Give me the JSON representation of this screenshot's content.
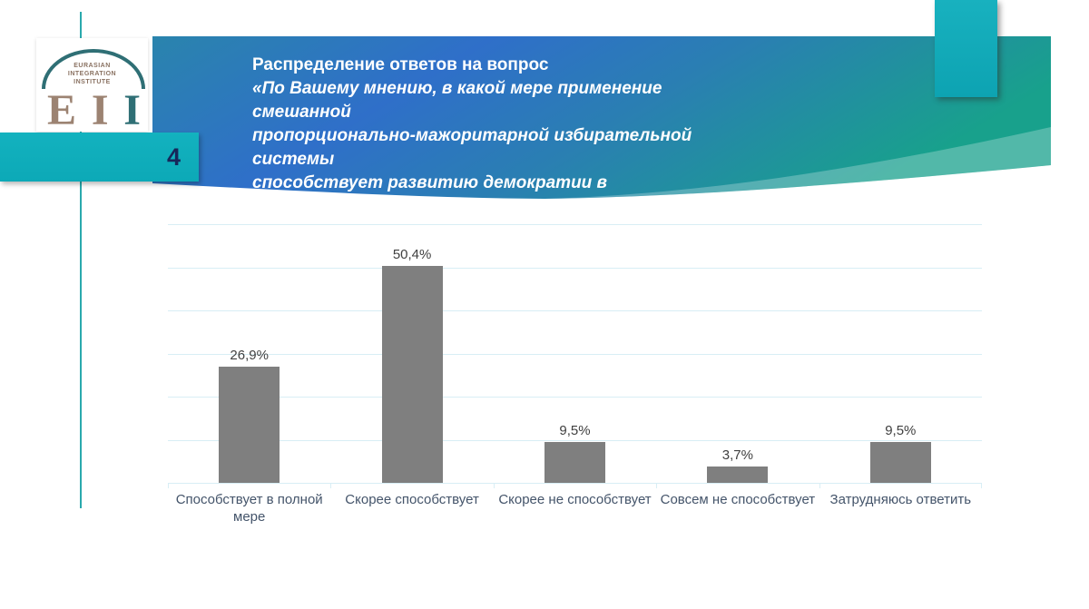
{
  "slide": {
    "page_number": "4"
  },
  "logo": {
    "institute_lines": [
      "EURASIAN",
      "INTEGRATION",
      "INSTITUTE"
    ],
    "letters": [
      "E",
      "I",
      "I"
    ]
  },
  "header": {
    "title": "Распределение ответов на вопрос",
    "question_lines": [
      "«По Вашему мнению, в какой мере применение смешанной",
      "пропорционально-мажоритарной избирательной системы",
      "способствует развитию демократии в Казахстане?»"
    ]
  },
  "colors": {
    "banner_blue": "#2f6fc9",
    "banner_teal": "#18a18c",
    "banner_left_teal": "#2a7e99",
    "accent_teal": "#0fb0bd",
    "bar_gray": "#7f7f7f",
    "gridline": "#d8eef5",
    "value_label": "#404040",
    "category_label": "#44546a",
    "page_number_navy": "#17275a"
  },
  "chart_data": {
    "type": "bar",
    "title": "",
    "xlabel": "",
    "ylabel": "",
    "categories": [
      "Способствует в полной мере",
      "Скорее способствует",
      "Скорее не способствует",
      "Совсем не способствует",
      "Затрудняюсь ответить"
    ],
    "values": [
      26.9,
      50.4,
      9.5,
      3.7,
      9.5
    ],
    "labels": [
      "26,9%",
      "50,4%",
      "9,5%",
      "3,7%",
      "9,5%"
    ],
    "ylim": [
      0,
      60
    ],
    "gridline_step": 10,
    "grid": true,
    "legend": "none",
    "y_axis_labels_visible": false
  }
}
